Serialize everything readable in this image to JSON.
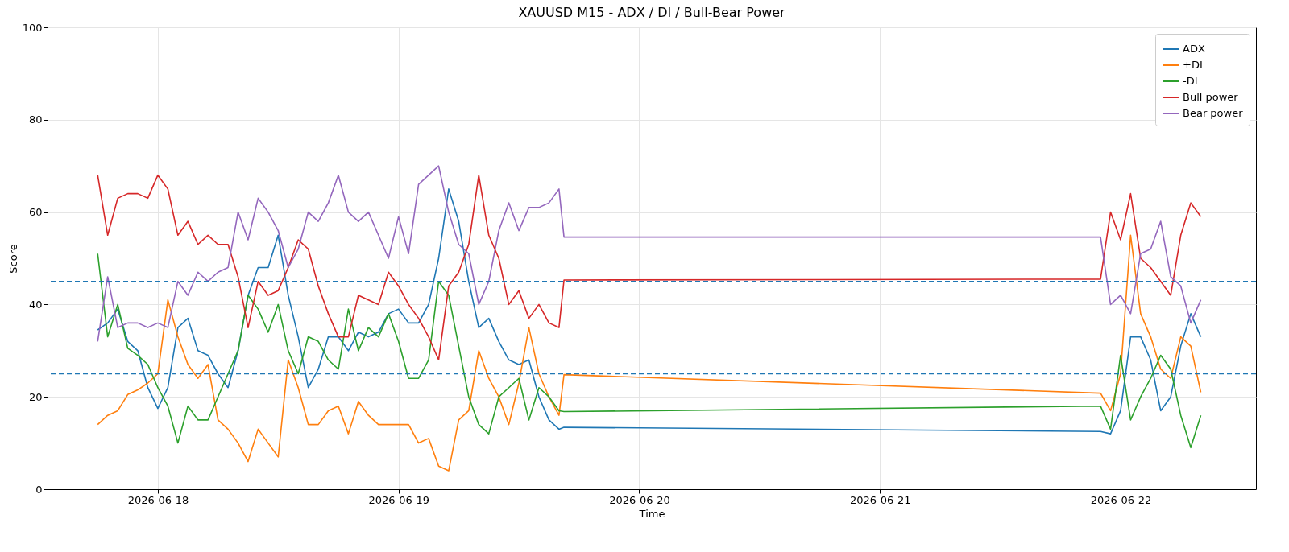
{
  "chart_data": {
    "type": "line",
    "title": "XAUUSD M15 - ADX / DI / Bull-Bear Power",
    "xlabel": "Time",
    "ylabel": "Score",
    "x": [
      "2026-06-17T18:00",
      "2026-06-17T19:00",
      "2026-06-17T20:00",
      "2026-06-17T21:00",
      "2026-06-17T22:00",
      "2026-06-17T23:00",
      "2026-06-18T00:00",
      "2026-06-18T01:00",
      "2026-06-18T02:00",
      "2026-06-18T03:00",
      "2026-06-18T04:00",
      "2026-06-18T05:00",
      "2026-06-18T06:00",
      "2026-06-18T07:00",
      "2026-06-18T08:00",
      "2026-06-18T09:00",
      "2026-06-18T10:00",
      "2026-06-18T11:00",
      "2026-06-18T12:00",
      "2026-06-18T13:00",
      "2026-06-18T14:00",
      "2026-06-18T15:00",
      "2026-06-18T16:00",
      "2026-06-18T17:00",
      "2026-06-18T18:00",
      "2026-06-18T19:00",
      "2026-06-18T20:00",
      "2026-06-18T21:00",
      "2026-06-18T22:00",
      "2026-06-18T23:00",
      "2026-06-19T00:00",
      "2026-06-19T01:00",
      "2026-06-19T02:00",
      "2026-06-19T03:00",
      "2026-06-19T04:00",
      "2026-06-19T05:00",
      "2026-06-19T06:00",
      "2026-06-19T07:00",
      "2026-06-19T08:00",
      "2026-06-19T09:00",
      "2026-06-19T10:00",
      "2026-06-19T11:00",
      "2026-06-19T12:00",
      "2026-06-19T13:00",
      "2026-06-19T14:00",
      "2026-06-19T15:00",
      "2026-06-19T16:00",
      "2026-06-19T16:30",
      "2026-06-21T22:00",
      "2026-06-21T23:00",
      "2026-06-22T00:00",
      "2026-06-22T01:00",
      "2026-06-22T02:00",
      "2026-06-22T03:00",
      "2026-06-22T04:00",
      "2026-06-22T05:00",
      "2026-06-22T06:00",
      "2026-06-22T07:00",
      "2026-06-22T08:00"
    ],
    "series": [
      {
        "name": "ADX",
        "color": "#1f77b4",
        "values": [
          34.5,
          36,
          39,
          32,
          30,
          22,
          17.5,
          22,
          35,
          37,
          30,
          29,
          25,
          22,
          30,
          42,
          48,
          48,
          55,
          42,
          33,
          22,
          26,
          33,
          33,
          30,
          34,
          33,
          34,
          38,
          39,
          36,
          36,
          40,
          50,
          65,
          58,
          45,
          35,
          37,
          32,
          28,
          27,
          28,
          20,
          15,
          13,
          13.4,
          12.5,
          12,
          17,
          33,
          33,
          28,
          17,
          20,
          31,
          38,
          33
        ]
      },
      {
        "name": "+DI",
        "color": "#ff7f0e",
        "values": [
          14,
          16,
          17,
          20.5,
          21.5,
          23,
          25,
          41,
          33,
          27,
          24,
          27,
          15,
          13,
          10,
          6,
          13,
          10,
          7,
          28,
          22,
          14,
          14,
          17,
          18,
          12,
          19,
          16,
          14,
          14,
          14,
          14,
          10,
          11,
          5,
          4,
          15,
          17,
          30,
          24,
          20,
          14,
          23,
          35,
          25,
          20,
          16,
          24.8,
          20.8,
          17,
          25,
          55,
          38,
          33,
          26,
          24,
          33,
          31,
          21
        ]
      },
      {
        "name": "-DI",
        "color": "#2ca02c",
        "values": [
          51,
          33,
          40,
          30.5,
          29,
          27,
          22,
          18,
          10,
          18,
          15,
          15,
          20,
          25,
          30,
          42,
          39,
          34,
          40,
          30,
          25,
          33,
          32,
          28,
          26,
          39,
          30,
          35,
          33,
          38,
          32,
          24,
          24,
          28,
          45,
          42,
          31,
          20,
          14,
          12,
          20,
          22,
          24,
          15,
          22,
          20,
          17,
          16.8,
          18,
          13,
          29,
          15,
          20,
          24,
          29,
          26,
          16,
          9,
          16
        ]
      },
      {
        "name": "Bull power",
        "color": "#d62728",
        "values": [
          68,
          55,
          63,
          64,
          64,
          63,
          68,
          65,
          55,
          58,
          53,
          55,
          53,
          53,
          46,
          35,
          45,
          42,
          43,
          48,
          54,
          52,
          44,
          38,
          33,
          33,
          42,
          41,
          40,
          47,
          44,
          40,
          37,
          33,
          28,
          44,
          47,
          53,
          68,
          55,
          50,
          40,
          43,
          37,
          40,
          36,
          35,
          45.3,
          45.5,
          60,
          54,
          64,
          50,
          48,
          45,
          42,
          55,
          62,
          59
        ]
      },
      {
        "name": "Bear power",
        "color": "#9467bd",
        "values": [
          32,
          46,
          35,
          36,
          36,
          35,
          36,
          35,
          45,
          42,
          47,
          45,
          47,
          48,
          60,
          54,
          63,
          60,
          56,
          48,
          52,
          60,
          58,
          62,
          68,
          60,
          58,
          60,
          55,
          50,
          59,
          51,
          66,
          68,
          70,
          60,
          53,
          51,
          40,
          45,
          56,
          62,
          56,
          61,
          61,
          62,
          65,
          54.6,
          54.6,
          40,
          42,
          38,
          51,
          52,
          58,
          46,
          44,
          36,
          41
        ]
      }
    ],
    "xlim": [
      "2026-06-17T13:00",
      "2026-06-22T13:30"
    ],
    "xticks": [
      "2026-06-18",
      "2026-06-19",
      "2026-06-20",
      "2026-06-21",
      "2026-06-22"
    ],
    "ylim": [
      0,
      100
    ],
    "yticks": [
      0,
      20,
      40,
      60,
      80,
      100
    ],
    "ref_lines": [
      {
        "axis": "y",
        "value": 45,
        "color": "#1f77b4",
        "line_style": "dashed"
      },
      {
        "axis": "y",
        "value": 25,
        "color": "#1f77b4",
        "line_style": "dashed"
      }
    ],
    "grid": true,
    "legend": "top right",
    "marker": "none"
  }
}
